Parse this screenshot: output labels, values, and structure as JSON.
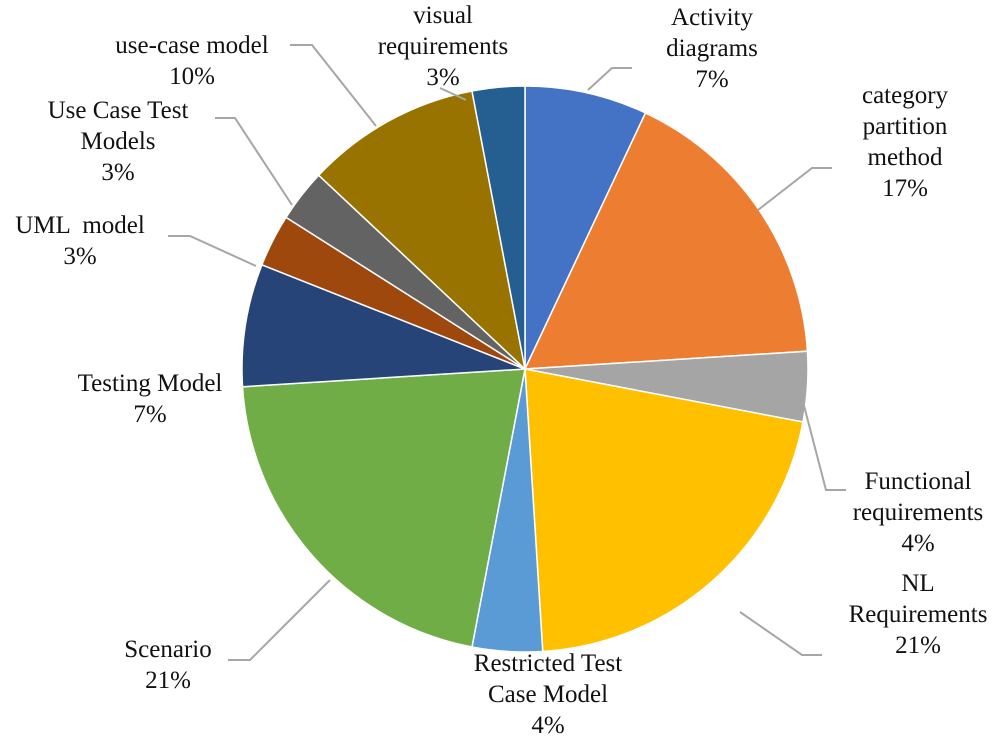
{
  "chart_data": {
    "type": "pie",
    "categories": [
      "Activity diagrams",
      "category partition method",
      "Functional requirements",
      "NL Requirements",
      "Restricted Test Case Model",
      "Scenario",
      "Testing Model",
      "UML  model",
      "Use Case Test Models",
      "use-case model",
      "visual requirements"
    ],
    "values": [
      7,
      17,
      4,
      21,
      4,
      21,
      7,
      3,
      3,
      10,
      3
    ],
    "value_labels": [
      "7%",
      "17%",
      "4%",
      "21%",
      "4%",
      "21%",
      "7%",
      "3%",
      "3%",
      "10%",
      "3%"
    ],
    "colors": [
      "#4472c4",
      "#ed7d31",
      "#a5a5a5",
      "#ffc000",
      "#5b9bd5",
      "#70ad47",
      "#264478",
      "#9e480e",
      "#636363",
      "#997300",
      "#255e91"
    ]
  }
}
